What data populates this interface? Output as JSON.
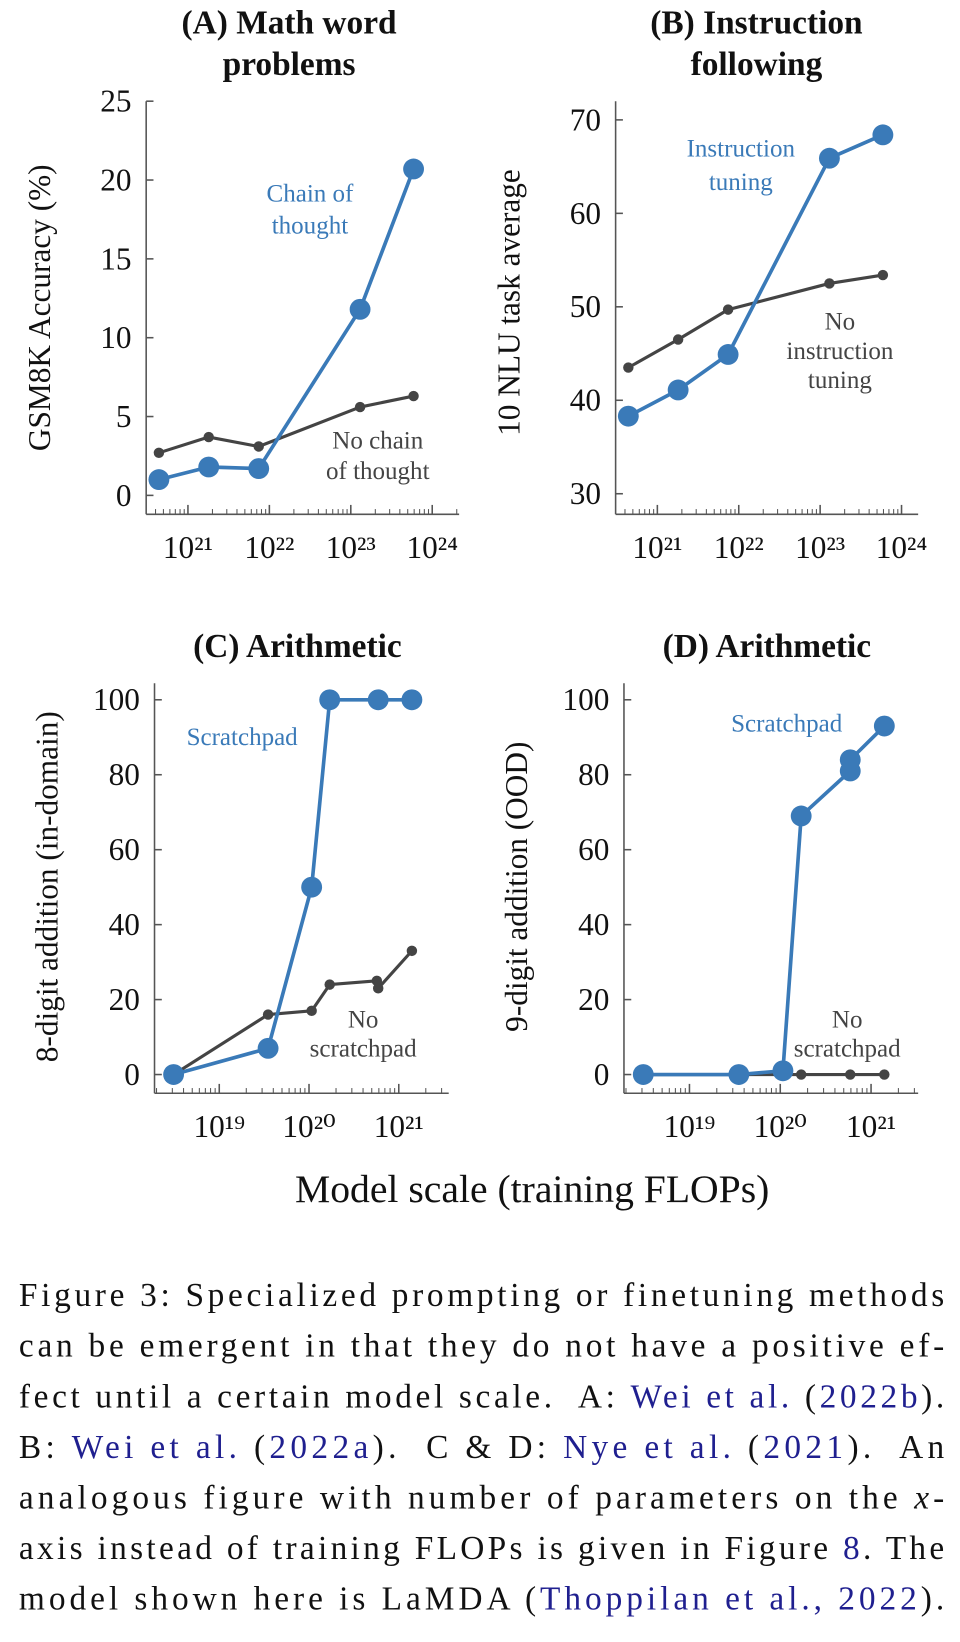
{
  "chart_data": [
    {
      "type": "line",
      "title": [
        "(A) Math word",
        "problems"
      ],
      "ylabel": "GSM8K Accuracy (%)",
      "xscale": "log",
      "xlim": [
        3.07e+20,
        2.14e+24
      ],
      "xticks": [
        {
          "value": 1e+21,
          "label": "10²¹"
        },
        {
          "value": 1e+22,
          "label": "10²²"
        },
        {
          "value": 1e+23,
          "label": "10²³"
        },
        {
          "value": 1e+24,
          "label": "10²⁴"
        }
      ],
      "ylim": [
        -1.2,
        25
      ],
      "yticks": [
        0,
        5,
        10,
        15,
        20,
        25
      ],
      "series": [
        {
          "label": [
            "No chain",
            "of thought"
          ],
          "color": "#444444",
          "marker": "small",
          "x": [
            4.4e+20,
            1.8e+21,
            7.4e+21,
            1.3e+23,
            5.9e+23
          ],
          "values": [
            2.7,
            3.7,
            3.1,
            5.6,
            6.3
          ]
        },
        {
          "label": [
            "Chain of",
            "thought"
          ],
          "color": "#3a7ab8",
          "marker": "large",
          "x": [
            4.4e+20,
            1.8e+21,
            7.4e+21,
            1.3e+23,
            5.9e+23
          ],
          "values": [
            1.0,
            1.8,
            1.7,
            11.8,
            20.7
          ]
        }
      ]
    },
    {
      "type": "line",
      "title": [
        "(B) Instruction",
        "following"
      ],
      "ylabel": "10 NLU task average",
      "xscale": "log",
      "xlim": [
        3.07e+20,
        1.6e+24
      ],
      "xticks": [
        {
          "value": 1e+21,
          "label": "10²¹"
        },
        {
          "value": 1e+22,
          "label": "10²²"
        },
        {
          "value": 1e+23,
          "label": "10²³"
        },
        {
          "value": 1e+24,
          "label": "10²⁴"
        }
      ],
      "ylim": [
        27.8,
        72
      ],
      "yticks": [
        30,
        40,
        50,
        60,
        70
      ],
      "series": [
        {
          "label": [
            "No",
            "instruction",
            "tuning"
          ],
          "color": "#444444",
          "marker": "small",
          "x": [
            4.4e+20,
            1.8e+21,
            7.4e+21,
            1.3e+23,
            5.9e+23
          ],
          "values": [
            43.5,
            46.5,
            49.7,
            52.5,
            53.4
          ]
        },
        {
          "label": [
            "Instruction",
            "tuning"
          ],
          "color": "#3a7ab8",
          "marker": "large",
          "x": [
            4.4e+20,
            1.8e+21,
            7.4e+21,
            1.3e+23,
            5.9e+23
          ],
          "values": [
            38.3,
            41.1,
            44.9,
            65.9,
            68.4
          ]
        }
      ]
    },
    {
      "type": "line",
      "title": [
        "(C) Arithmetic"
      ],
      "ylabel": "8-digit addition (in-domain)",
      "xscale": "log",
      "xlim": [
        1.9e+18,
        3.6e+21
      ],
      "xticks": [
        {
          "value": 1e+19,
          "label": "10¹⁹"
        },
        {
          "value": 1e+20,
          "label": "10²⁰"
        },
        {
          "value": 1e+21,
          "label": "10²¹"
        }
      ],
      "ylim": [
        -5,
        104.4
      ],
      "yticks": [
        0,
        20,
        40,
        60,
        80,
        100
      ],
      "series": [
        {
          "label": [
            "No",
            "scratchpad"
          ],
          "color": "#444444",
          "marker": "small",
          "x": [
            3.1e+18,
            3.5e+19,
            1.07e+20,
            1.7e+20,
            5.7e+20,
            5.9e+20,
            1.4e+21
          ],
          "values": [
            0,
            16,
            17,
            24,
            25,
            23,
            33
          ]
        },
        {
          "label": [
            "Scratchpad"
          ],
          "color": "#3a7ab8",
          "marker": "large",
          "x": [
            3.1e+18,
            3.5e+19,
            1.07e+20,
            1.7e+20,
            5.9e+20,
            1.4e+21
          ],
          "values": [
            0,
            7,
            50,
            100,
            100,
            100
          ]
        }
      ]
    },
    {
      "type": "line",
      "title": [
        "(D) Arithmetic"
      ],
      "ylabel": "9-digit addition (OOD)",
      "xscale": "log",
      "xlim": [
        1.9e+18,
        3.3e+21
      ],
      "xticks": [
        {
          "value": 1e+19,
          "label": "10¹⁹"
        },
        {
          "value": 1e+20,
          "label": "10²⁰"
        },
        {
          "value": 1e+21,
          "label": "10²¹"
        }
      ],
      "ylim": [
        -5,
        104.4
      ],
      "yticks": [
        0,
        20,
        40,
        60,
        80,
        100
      ],
      "series": [
        {
          "label": [
            "No",
            "scratchpad"
          ],
          "color": "#444444",
          "marker": "small",
          "x": [
            3.1e+18,
            3.5e+19,
            1.07e+20,
            1.7e+20,
            5.9e+20,
            1.4e+21
          ],
          "values": [
            0,
            0,
            0,
            0,
            0,
            0
          ]
        },
        {
          "label": [
            "Scratchpad"
          ],
          "color": "#3a7ab8",
          "marker": "large",
          "x": [
            3.1e+18,
            3.5e+19,
            1.07e+20,
            1.7e+20,
            5.9e+20,
            5.9e+20,
            1.4e+21
          ],
          "values": [
            0,
            0,
            1,
            69,
            81,
            84,
            93
          ]
        }
      ]
    }
  ],
  "xlabel": "Model scale (training FLOPs)",
  "caption": [
    [
      {
        "text": "Figure 3: Specialized prompting or finetuning methods"
      }
    ],
    [
      {
        "text": "can be emergent in that they do not have a positive ef-"
      }
    ],
    [
      {
        "text": "fect until a certain model scale.  A: "
      },
      {
        "text": "Wei et al.",
        "style": "link"
      },
      {
        "text": " ("
      },
      {
        "text": "2022b",
        "style": "link"
      },
      {
        "text": ")."
      }
    ],
    [
      {
        "text": "B: "
      },
      {
        "text": "Wei et al.",
        "style": "link"
      },
      {
        "text": " ("
      },
      {
        "text": "2022a",
        "style": "link"
      },
      {
        "text": ").  C & D: "
      },
      {
        "text": "Nye et al.",
        "style": "link"
      },
      {
        "text": " ("
      },
      {
        "text": "2021",
        "style": "link"
      },
      {
        "text": ").  An"
      }
    ],
    [
      {
        "text": "analogous figure with number of parameters on the "
      },
      {
        "text": "x",
        "style": "italic"
      },
      {
        "text": "-"
      }
    ],
    [
      {
        "text": "axis instead of training FLOPs is given in Figure "
      },
      {
        "text": "8",
        "style": "link"
      },
      {
        "text": ". The"
      }
    ],
    [
      {
        "text": "model shown here is LaMDA ("
      },
      {
        "text": "Thoppilan et al., 2022",
        "style": "link"
      },
      {
        "text": ")."
      }
    ]
  ]
}
